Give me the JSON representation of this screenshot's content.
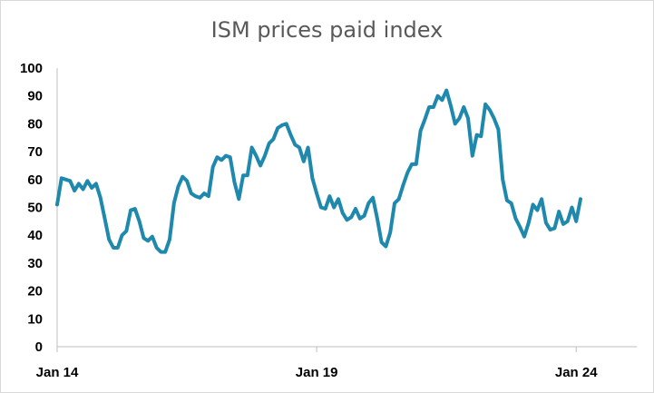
{
  "chart_data": {
    "type": "line",
    "title": "ISM prices paid index",
    "xlabel": "",
    "ylabel": "",
    "ylim": [
      0,
      100
    ],
    "yticks": [
      0,
      10,
      20,
      30,
      40,
      50,
      60,
      70,
      80,
      90,
      100
    ],
    "xlim": [
      "2014-01",
      "2025-03"
    ],
    "xticks": [
      {
        "date": "2014-01",
        "label": "Jan 14"
      },
      {
        "date": "2019-01",
        "label": "Jan 19"
      },
      {
        "date": "2024-01",
        "label": "Jan 24"
      }
    ],
    "grid": false,
    "legend": "none",
    "line_color": "#1f89ad",
    "series": [
      {
        "start": "2014-01",
        "frequency": "monthly",
        "values": [
          51,
          60.5,
          60,
          59.5,
          56,
          58.5,
          56.5,
          59.5,
          57,
          58.5,
          53.5,
          46,
          38.5,
          35.5,
          35.5,
          40,
          41.5,
          49,
          49.5,
          45,
          39,
          38,
          39.5,
          35.5,
          34,
          34,
          38.5,
          51.5,
          57.5,
          61,
          59.5,
          55,
          54,
          53.5,
          55,
          54,
          64.5,
          68,
          67,
          68.5,
          68,
          59,
          53,
          61.5,
          61.5,
          71.5,
          68.5,
          65,
          68.5,
          73,
          74.5,
          78.5,
          79.5,
          80,
          76,
          72.5,
          71.5,
          66.5,
          71.5,
          60.5,
          55,
          50,
          49.5,
          54,
          50,
          53,
          48,
          45.5,
          46.5,
          49.5,
          46,
          47,
          51.5,
          53.5,
          46,
          37.5,
          36,
          41,
          51.5,
          53,
          58,
          62.5,
          65.5,
          65.5,
          77.5,
          81.5,
          86,
          86,
          90,
          88.5,
          92,
          86.5,
          80,
          82,
          86,
          82,
          68.5,
          76,
          75.5,
          87,
          85,
          82,
          78,
          60,
          52.5,
          51.5,
          46,
          43,
          39.5,
          44.5,
          51,
          49,
          53,
          44.5,
          42,
          42.5,
          48.5,
          44,
          45,
          50,
          45,
          53
        ]
      }
    ]
  }
}
